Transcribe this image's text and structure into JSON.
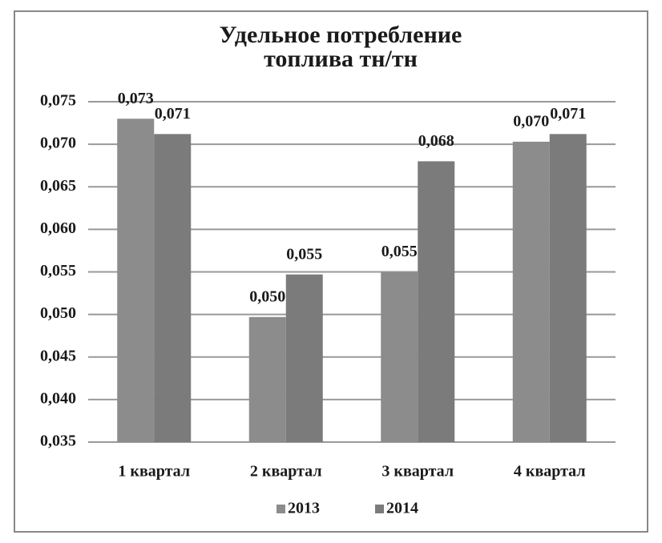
{
  "chart_data": {
    "type": "bar",
    "title": [
      "Удельное потребление",
      "топлива тн/тн"
    ],
    "categories": [
      "1 квартал",
      "2 квартал",
      "3 квартал",
      "4 квартал"
    ],
    "series": [
      {
        "name": "2013",
        "color": "#8c8c8c",
        "values": [
          0.073,
          0.0497,
          0.055,
          0.0703
        ],
        "value_labels": [
          "0,073",
          "0,050",
          "0,055",
          "0,070"
        ]
      },
      {
        "name": "2014",
        "color": "#7b7b7b",
        "values": [
          0.0712,
          0.0547,
          0.068,
          0.0712
        ],
        "value_labels": [
          "0,071",
          "0,055",
          "0,068",
          "0,071"
        ]
      }
    ],
    "ylim": [
      0.035,
      0.075
    ],
    "yticks": [
      {
        "value": 0.035,
        "label": "0,035"
      },
      {
        "value": 0.04,
        "label": "0,040"
      },
      {
        "value": 0.045,
        "label": "0,045"
      },
      {
        "value": 0.05,
        "label": "0,050"
      },
      {
        "value": 0.055,
        "label": "0,055"
      },
      {
        "value": 0.06,
        "label": "0,060"
      },
      {
        "value": 0.065,
        "label": "0,065"
      },
      {
        "value": 0.07,
        "label": "0,070"
      },
      {
        "value": 0.075,
        "label": "0,075"
      }
    ],
    "grid": true,
    "legend": "bottom"
  }
}
